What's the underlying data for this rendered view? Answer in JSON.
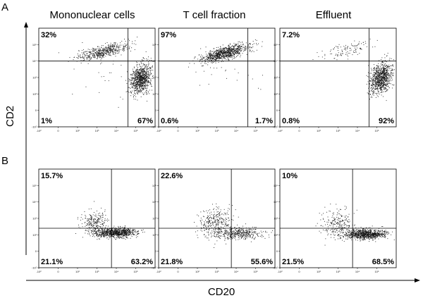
{
  "chart_data": {
    "type": "scatter",
    "title": "",
    "panel_labels": [
      "A",
      "B"
    ],
    "column_titles": [
      "Mononuclear cells",
      "T cell fraction",
      "Effluent"
    ],
    "xlabel": "CD20",
    "ylabel": "CD2",
    "x_tick_labels": [
      "-10²",
      "0",
      "10²",
      "10³",
      "10⁴",
      "10⁵"
    ],
    "y_tick_labels": [
      "-10²",
      "0",
      "10²",
      "10³",
      "10⁴",
      "10⁵"
    ],
    "axis_range_log10": [
      -1,
      5
    ],
    "panels": [
      {
        "row": "A",
        "column": "Mononuclear cells",
        "gate": {
          "x": 3.6,
          "y": 3.0
        },
        "quadrants": {
          "upper_left": "32%",
          "upper_right": "",
          "lower_left": "1%",
          "lower_right": "67%"
        },
        "populations": [
          {
            "cx": 2.3,
            "cy": 3.6,
            "sx": 0.65,
            "sy": 0.18,
            "n": 520,
            "tilt": 0.25
          },
          {
            "cx": 4.25,
            "cy": 1.9,
            "sx": 0.28,
            "sy": 0.45,
            "n": 900,
            "tilt": 0.5
          },
          {
            "cx": 2.0,
            "cy": 2.2,
            "sx": 1.0,
            "sy": 0.9,
            "n": 25,
            "tilt": 0
          }
        ]
      },
      {
        "row": "A",
        "column": "T cell fraction",
        "gate": {
          "x": 3.6,
          "y": 3.0
        },
        "quadrants": {
          "upper_left": "97%",
          "upper_right": "",
          "lower_left": "0.6%",
          "lower_right": "1.7%"
        },
        "populations": [
          {
            "cx": 2.4,
            "cy": 3.5,
            "sx": 0.6,
            "sy": 0.2,
            "n": 900,
            "tilt": 0.3
          },
          {
            "cx": 2.5,
            "cy": 2.4,
            "sx": 1.2,
            "sy": 0.6,
            "n": 20,
            "tilt": 0
          }
        ]
      },
      {
        "row": "A",
        "column": "Effluent",
        "gate": {
          "x": 3.6,
          "y": 3.0
        },
        "quadrants": {
          "upper_left": "7.2%",
          "upper_right": "",
          "lower_left": "0.8%",
          "lower_right": "92%"
        },
        "populations": [
          {
            "cx": 2.4,
            "cy": 3.7,
            "sx": 0.6,
            "sy": 0.22,
            "n": 110,
            "tilt": 0.25
          },
          {
            "cx": 4.2,
            "cy": 2.0,
            "sx": 0.3,
            "sy": 0.45,
            "n": 900,
            "tilt": 0.5
          }
        ]
      },
      {
        "row": "B",
        "column": "Mononuclear cells",
        "gate": {
          "x": 2.75,
          "y": 1.4
        },
        "quadrants": {
          "upper_left": "15.7%",
          "upper_right": "",
          "lower_left": "21.1%",
          "lower_right": "63.2%"
        },
        "populations": [
          {
            "cx": 3.0,
            "cy": 1.15,
            "sx": 0.55,
            "sy": 0.15,
            "n": 850,
            "tilt": 0
          },
          {
            "cx": 1.9,
            "cy": 1.7,
            "sx": 0.35,
            "sy": 0.4,
            "n": 260,
            "tilt": 0
          }
        ]
      },
      {
        "row": "B",
        "column": "T cell fraction",
        "gate": {
          "x": 2.75,
          "y": 1.4
        },
        "quadrants": {
          "upper_left": "22.6%",
          "upper_right": "",
          "lower_left": "21.8%",
          "lower_right": "55.6%"
        },
        "populations": [
          {
            "cx": 3.1,
            "cy": 1.1,
            "sx": 0.65,
            "sy": 0.18,
            "n": 430,
            "tilt": 0
          },
          {
            "cx": 1.9,
            "cy": 1.8,
            "sx": 0.4,
            "sy": 0.45,
            "n": 300,
            "tilt": 0
          }
        ]
      },
      {
        "row": "B",
        "column": "Effluent",
        "gate": {
          "x": 2.75,
          "y": 1.4
        },
        "quadrants": {
          "upper_left": "10%",
          "upper_right": "",
          "lower_left": "21.5%",
          "lower_right": "68.5%"
        },
        "populations": [
          {
            "cx": 3.4,
            "cy": 1.05,
            "sx": 0.55,
            "sy": 0.15,
            "n": 900,
            "tilt": 0
          },
          {
            "cx": 2.0,
            "cy": 1.7,
            "sx": 0.4,
            "sy": 0.45,
            "n": 230,
            "tilt": 0
          }
        ]
      }
    ]
  }
}
